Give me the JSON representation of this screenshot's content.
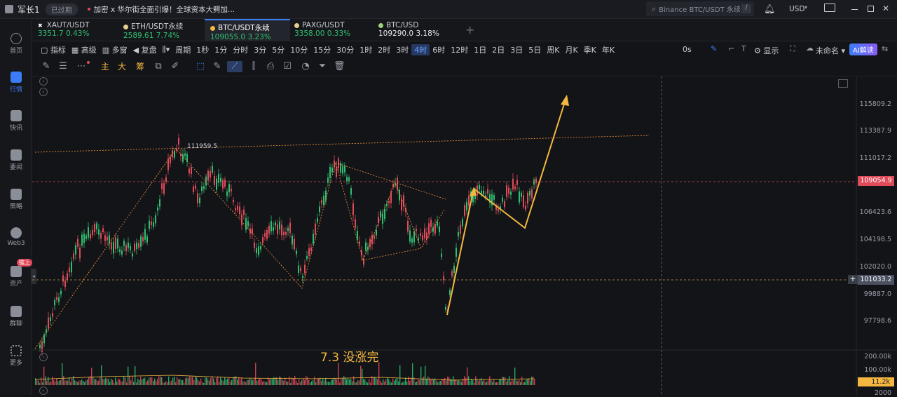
{
  "topbar": {
    "user": "军长1",
    "status_badge": "已过期",
    "marquee": "加密 x 华尔街全面引爆！全球资本大鳄加...",
    "search_placeholder": "Binance BTC/USDT 永续",
    "currency": "USD"
  },
  "sidebar": {
    "items": [
      {
        "label": "首页",
        "icon": "home-icon"
      },
      {
        "label": "行情",
        "icon": "chart-icon"
      },
      {
        "label": "快讯",
        "icon": "news-icon"
      },
      {
        "label": "要闻",
        "icon": "doc-icon"
      },
      {
        "label": "策略",
        "icon": "robot-icon"
      },
      {
        "label": "Web3",
        "icon": "web3-icon"
      },
      {
        "label": "资产",
        "icon": "wallet-icon",
        "badge": "链上"
      },
      {
        "label": "群聊",
        "icon": "chat-icon"
      },
      {
        "label": "更多",
        "icon": "more-icon"
      }
    ]
  },
  "tickers": [
    {
      "name": "XAUT/USDT",
      "price": "3351.7",
      "change": "0.43%"
    },
    {
      "name": "ETH/USDT永续",
      "price": "2589.61",
      "change": "7.74%"
    },
    {
      "name": "BTC/USDT永续",
      "price": "109055.0",
      "change": "3.23%"
    },
    {
      "name": "PAXG/USDT",
      "price": "3358.00",
      "change": "0.33%"
    },
    {
      "name": "BTC/USD",
      "price": "109290.0",
      "change": "3.18%"
    }
  ],
  "toolbar1": {
    "indicators": "指标",
    "advanced": "高级",
    "multi_window": "多窗",
    "replay": "复盘",
    "period": "周期",
    "intervals": [
      "1秒",
      "1分",
      "分时",
      "3分",
      "5分",
      "10分",
      "15分",
      "30分",
      "1时",
      "2时",
      "3时",
      "4时",
      "6时",
      "12时",
      "1日",
      "2日",
      "3日",
      "5日",
      "周K",
      "月K",
      "季K",
      "年K"
    ],
    "active_interval": "4时",
    "timer": "0s",
    "display": "显示",
    "unnamed": "未命名",
    "ai": "AI解读"
  },
  "toolbar2": {
    "main": "主",
    "big": "大",
    "chips": "筹"
  },
  "chart": {
    "annotation": "7.3 没涨完",
    "high_label": "111959.5",
    "price_axis": [
      "115809.2",
      "113387.9",
      "111017.2",
      "106423.6",
      "104198.5",
      "102020.0",
      "99887.0",
      "97798.6"
    ],
    "current_price": "109054.9",
    "crosshair_price": "101033.2",
    "volume_axis": [
      "200.00k",
      "100.00k",
      "2000"
    ],
    "volume_current": "11.2k"
  },
  "colors": {
    "up": "#2fbf71",
    "down": "#e04b5a",
    "accent": "#3d7cf7",
    "arrow": "#f5b740",
    "trendline": "#e0893a"
  }
}
